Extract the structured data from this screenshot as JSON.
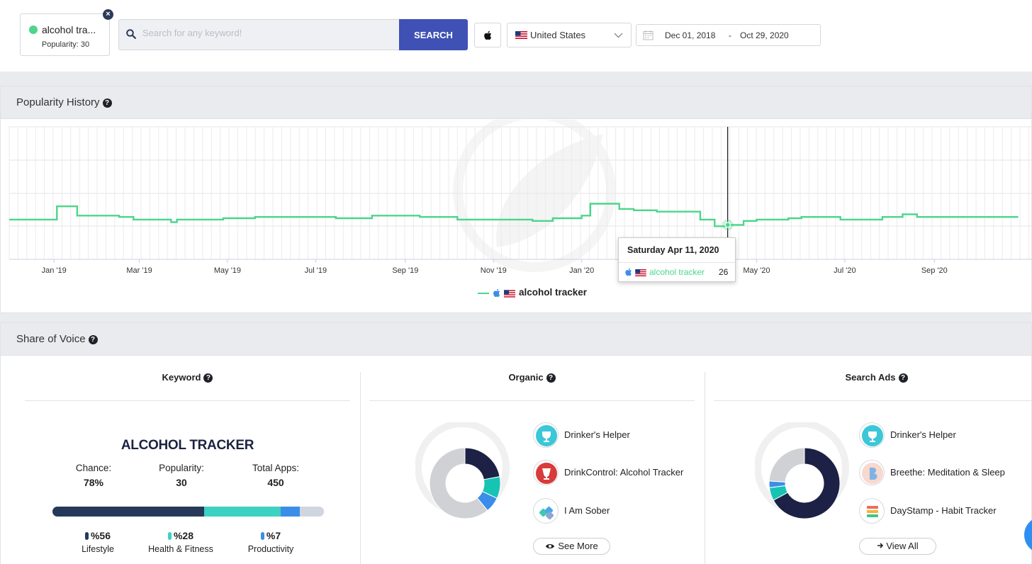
{
  "keyword_chip": {
    "name": "alcohol tra...",
    "popularity": "Popularity: 30"
  },
  "search": {
    "placeholder": "Search for any keyword!",
    "button": "SEARCH"
  },
  "country": "United States",
  "date_range": {
    "start": "Dec 01, 2018",
    "separator": "-",
    "end": "Oct 29, 2020"
  },
  "history": {
    "title": "Popularity History",
    "tooltip": {
      "date": "Saturday Apr 11, 2020",
      "keyword": "alcohol tracker",
      "value": "26"
    },
    "legend": "alcohol tracker"
  },
  "chart_data": {
    "type": "line",
    "title": "Popularity History",
    "x_tick_labels": [
      "Jan '19",
      "Mar '19",
      "May '19",
      "Jul '19",
      "Sep '19",
      "Nov '19",
      "Jan '20",
      "Mar '20",
      "May '20",
      "Jul '20",
      "Sep '20"
    ],
    "ylim": [
      0,
      100
    ],
    "grid": true,
    "series": [
      {
        "name": "alcohol tracker",
        "color": "#4cd58b",
        "points": [
          [
            "2018-12-01",
            30
          ],
          [
            "2018-12-31",
            30
          ],
          [
            "2019-01-03",
            40
          ],
          [
            "2019-01-12",
            40
          ],
          [
            "2019-01-17",
            33
          ],
          [
            "2019-02-15",
            32
          ],
          [
            "2019-02-25",
            30
          ],
          [
            "2019-03-20",
            30
          ],
          [
            "2019-03-23",
            28
          ],
          [
            "2019-03-27",
            30
          ],
          [
            "2019-04-28",
            31
          ],
          [
            "2019-05-20",
            32
          ],
          [
            "2019-07-05",
            32
          ],
          [
            "2019-07-15",
            31
          ],
          [
            "2019-08-09",
            33
          ],
          [
            "2019-09-11",
            32
          ],
          [
            "2019-10-07",
            30
          ],
          [
            "2019-11-08",
            30
          ],
          [
            "2019-11-28",
            29
          ],
          [
            "2019-12-12",
            31
          ],
          [
            "2020-01-01",
            33
          ],
          [
            "2020-01-07",
            42
          ],
          [
            "2020-01-15",
            42
          ],
          [
            "2020-01-27",
            38
          ],
          [
            "2020-02-06",
            37
          ],
          [
            "2020-02-22",
            36
          ],
          [
            "2020-03-23",
            30
          ],
          [
            "2020-04-02",
            25
          ],
          [
            "2020-04-11",
            26
          ],
          [
            "2020-04-22",
            29
          ],
          [
            "2020-05-01",
            30
          ],
          [
            "2020-05-23",
            31
          ],
          [
            "2020-06-01",
            32
          ],
          [
            "2020-06-28",
            30
          ],
          [
            "2020-07-27",
            32
          ],
          [
            "2020-08-10",
            34
          ],
          [
            "2020-08-20",
            32
          ],
          [
            "2020-10-29",
            32
          ]
        ]
      }
    ],
    "annotation": {
      "date": "Saturday Apr 11, 2020",
      "value": 26
    }
  },
  "share_of_voice": {
    "title": "Share of Voice",
    "keyword_col": {
      "title": "Keyword",
      "name": "ALCOHOL TRACKER",
      "stats": [
        {
          "label": "Chance:",
          "value": "78%"
        },
        {
          "label": "Popularity:",
          "value": "30"
        },
        {
          "label": "Total Apps:",
          "value": "450"
        }
      ],
      "categories": [
        {
          "pct": "%56",
          "label": "Lifestyle",
          "share": 56,
          "color": "#27395a"
        },
        {
          "pct": "%28",
          "label": "Health & Fitness",
          "share": 28,
          "color": "#3ed1c2"
        },
        {
          "pct": "%7",
          "label": "Productivity",
          "share": 7,
          "color": "#3a8ee8"
        }
      ],
      "remainder_color": "#cfd6e0"
    },
    "organic_col": {
      "title": "Organic",
      "apps": [
        "Drinker's Helper",
        "DrinkControl: Alcohol Tracker",
        "I Am Sober"
      ],
      "button": "See More",
      "donut": [
        {
          "value": 22,
          "color": "#1c2145"
        },
        {
          "value": 10,
          "color": "#17c4b4"
        },
        {
          "value": 7,
          "color": "#3a8ee8"
        },
        {
          "value": 61,
          "color": "#cfd1d4"
        }
      ]
    },
    "ads_col": {
      "title": "Search Ads",
      "apps": [
        "Drinker's Helper",
        "Breethe: Meditation & Sleep",
        "DayStamp - Habit Tracker"
      ],
      "button": "View All",
      "donut": [
        {
          "value": 67,
          "color": "#1c2145"
        },
        {
          "value": 6,
          "color": "#17c4b4"
        },
        {
          "value": 3,
          "color": "#3a8ee8"
        },
        {
          "value": 24,
          "color": "#cfd1d4"
        }
      ]
    }
  }
}
